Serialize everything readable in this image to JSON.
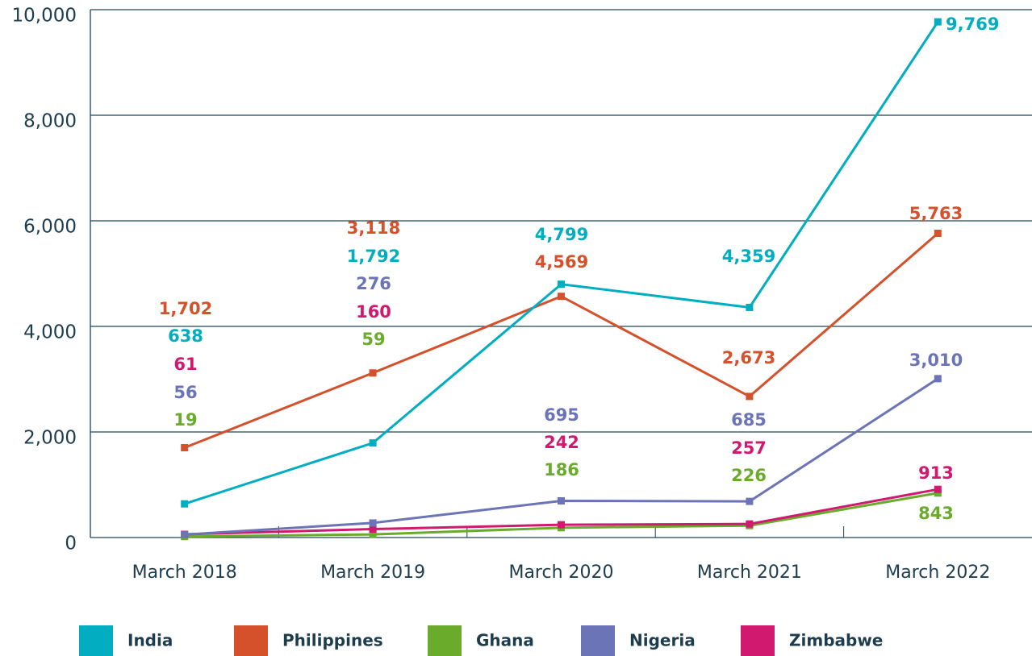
{
  "chart_data": {
    "type": "line",
    "categories": [
      "March 2018",
      "March 2019",
      "March 2020",
      "March 2021",
      "March 2022"
    ],
    "ylim": [
      0,
      10000
    ],
    "yticks": [
      0,
      {
        "value": 2000,
        "label": "2,000"
      },
      {
        "value": 4000,
        "label": "4,000"
      },
      {
        "value": 6000,
        "label": "6,000"
      },
      {
        "value": 8000,
        "label": "8,000"
      },
      {
        "value": 10000,
        "label": "10,000"
      }
    ],
    "grid": true,
    "series": [
      {
        "name": "India",
        "color": "#00adc1",
        "values": [
          638,
          1792,
          4799,
          4359,
          9769
        ],
        "value_labels": [
          "638",
          "1,792",
          "4,799",
          "4,359",
          "9,769"
        ]
      },
      {
        "name": "Philippines",
        "color": "#d4512b",
        "values": [
          1702,
          3118,
          4569,
          2673,
          5763
        ],
        "value_labels": [
          "1,702",
          "3,118",
          "4,569",
          "2,673",
          "5,763"
        ]
      },
      {
        "name": "Ghana",
        "color": "#6aab2c",
        "values": [
          19,
          59,
          186,
          226,
          843
        ],
        "value_labels": [
          "19",
          "59",
          "186",
          "226",
          "843"
        ]
      },
      {
        "name": "Nigeria",
        "color": "#6b74b6",
        "values": [
          56,
          276,
          695,
          685,
          3010
        ],
        "value_labels": [
          "56",
          "276",
          "695",
          "685",
          "3,010"
        ]
      },
      {
        "name": "Zimbabwe",
        "color": "#d0196f",
        "values": [
          61,
          160,
          242,
          257,
          913
        ],
        "value_labels": [
          "61",
          "160",
          "242",
          "257",
          "913"
        ]
      }
    ]
  }
}
